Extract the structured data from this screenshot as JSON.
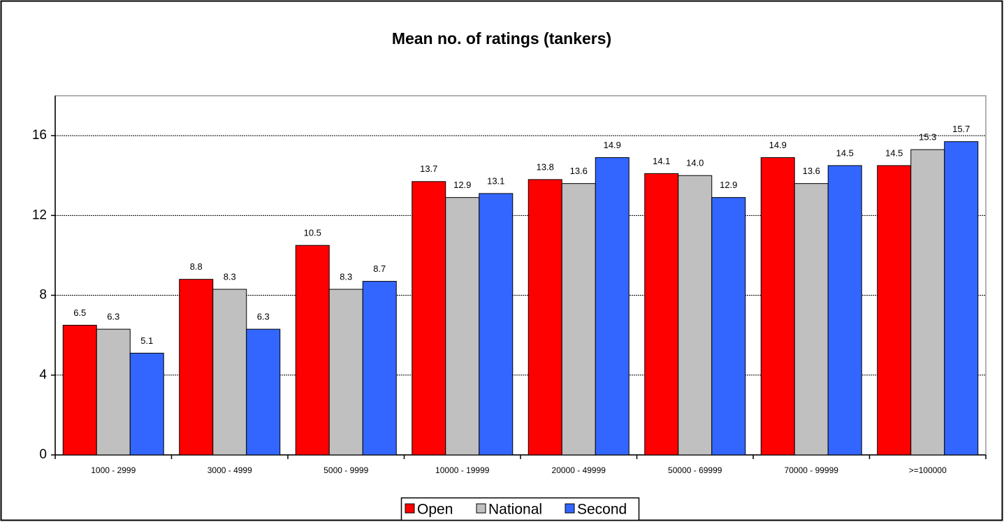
{
  "chart_data": {
    "type": "bar",
    "title": "Mean no. of ratings (tankers)",
    "categories": [
      "1000 - 2999",
      "3000 - 4999",
      "5000 - 9999",
      "10000 - 19999",
      "20000 - 49999",
      "50000 - 69999",
      "70000 - 99999",
      ">=100000"
    ],
    "series": [
      {
        "name": "Open",
        "color": "#ff0000",
        "values": [
          6.5,
          8.8,
          10.5,
          13.7,
          13.8,
          14.1,
          14.9,
          14.5
        ]
      },
      {
        "name": "National",
        "color": "#c0c0c0",
        "values": [
          6.3,
          8.3,
          8.3,
          12.9,
          13.6,
          14.0,
          13.6,
          15.3
        ],
        "value_labels": [
          "6.3",
          "8.3",
          "8.3",
          "12.9",
          "13.6",
          "14.0",
          "13.6",
          "15.3"
        ]
      },
      {
        "name": "Second",
        "color": "#3366ff",
        "values": [
          5.1,
          6.3,
          8.7,
          13.1,
          14.9,
          12.9,
          14.5,
          15.7
        ]
      }
    ],
    "ylim": [
      0,
      18
    ],
    "yticks": [
      0,
      4,
      8,
      12,
      16
    ],
    "grid": true,
    "legend": "bottom"
  }
}
